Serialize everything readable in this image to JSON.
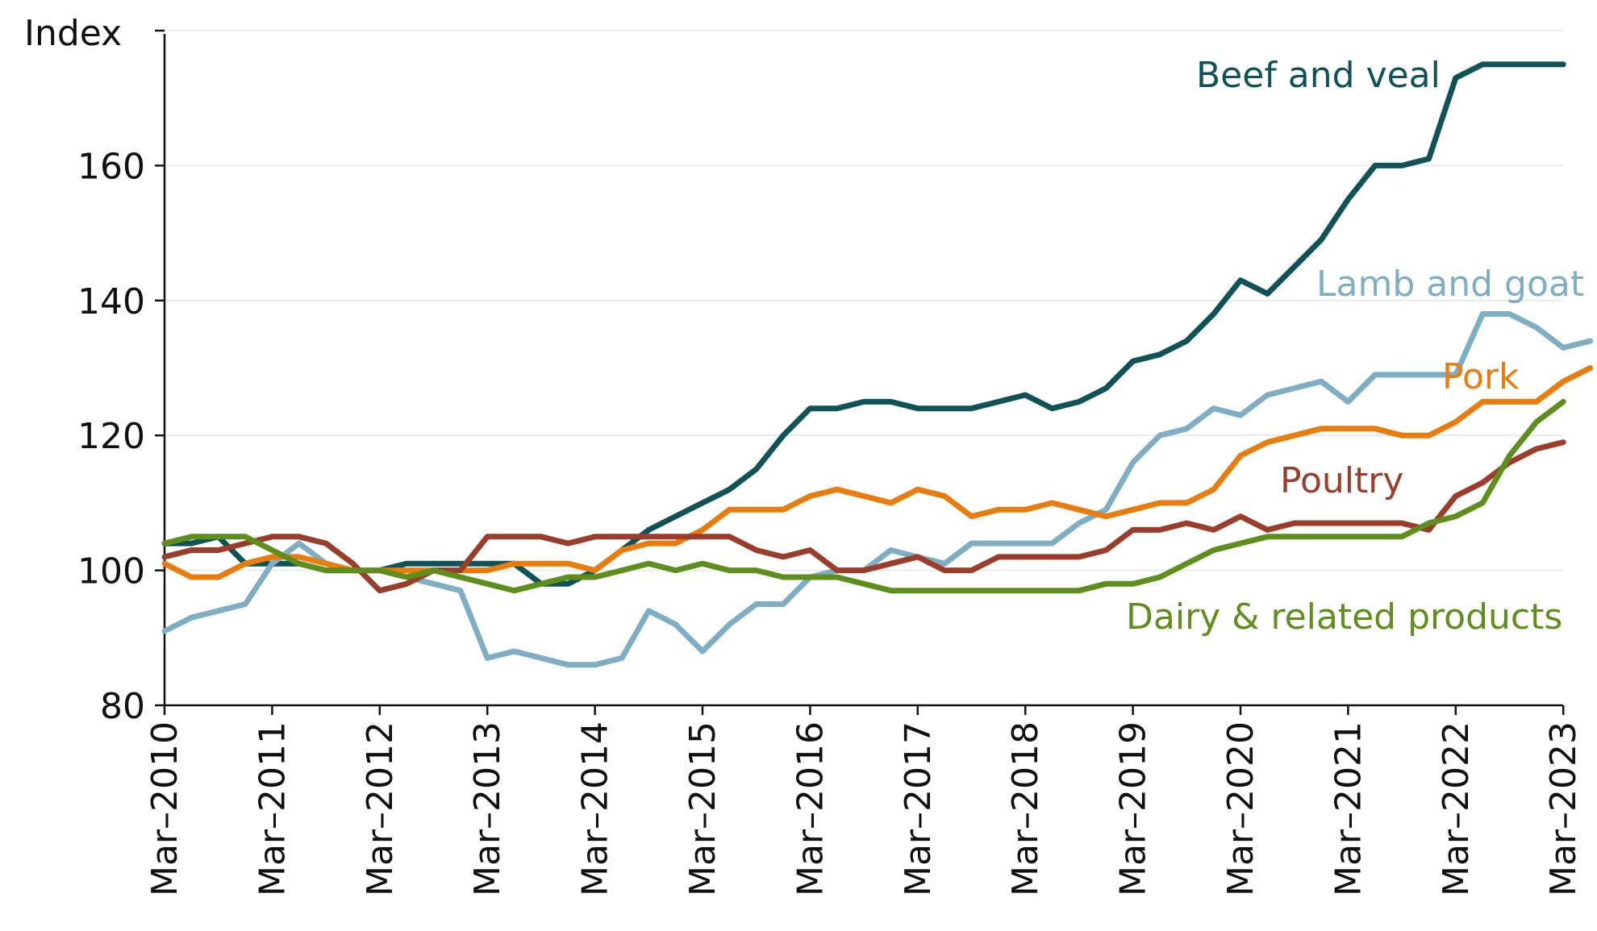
{
  "chart_data": {
    "type": "line",
    "title": "",
    "xlabel": "",
    "ylabel": "Index",
    "ylim": [
      80,
      180
    ],
    "yticks": [
      80,
      100,
      120,
      140,
      160
    ],
    "x_tick_labels": [
      "Mar–2010",
      "Mar–2011",
      "Mar–2012",
      "Mar–2013",
      "Mar–2014",
      "Mar–2015",
      "Mar–2016",
      "Mar–2017",
      "Mar–2018",
      "Mar–2019",
      "Mar–2020",
      "Mar–2021",
      "Mar–2022",
      "Mar–2023"
    ],
    "x_start": "Mar–2010",
    "x_frequency": "quarterly",
    "grid": true,
    "series": [
      {
        "name": "Beef and veal",
        "color": "#0f5257",
        "values": [
          104,
          104,
          105,
          101,
          101,
          101,
          100,
          100,
          100,
          101,
          101,
          101,
          101,
          101,
          98,
          98,
          100,
          103,
          106,
          108,
          110,
          112,
          115,
          120,
          124,
          124,
          125,
          125,
          124,
          124,
          124,
          125,
          126,
          124,
          125,
          127,
          131,
          132,
          134,
          138,
          143,
          141,
          145,
          149,
          155,
          160,
          160,
          161,
          173,
          175,
          175,
          175,
          175
        ]
      },
      {
        "name": "Lamb and goat",
        "color": "#7eaec4",
        "values": [
          91,
          93,
          94,
          95,
          101,
          104,
          101,
          100,
          100,
          99,
          98,
          97,
          87,
          88,
          87,
          86,
          86,
          87,
          94,
          92,
          88,
          92,
          95,
          95,
          99,
          100,
          100,
          103,
          102,
          101,
          104,
          104,
          104,
          104,
          107,
          109,
          116,
          120,
          121,
          124,
          123,
          126,
          127,
          128,
          125,
          129,
          129,
          129,
          129,
          138,
          138,
          136,
          133,
          134
        ]
      },
      {
        "name": "Pork",
        "color": "#e97c0c",
        "values": [
          101,
          99,
          99,
          101,
          102,
          102,
          101,
          100,
          100,
          100,
          100,
          100,
          100,
          101,
          101,
          101,
          100,
          103,
          104,
          104,
          106,
          109,
          109,
          109,
          111,
          112,
          111,
          110,
          112,
          111,
          108,
          109,
          109,
          110,
          109,
          108,
          109,
          110,
          110,
          112,
          117,
          119,
          120,
          121,
          121,
          121,
          120,
          120,
          122,
          125,
          125,
          125,
          128,
          130
        ]
      },
      {
        "name": "Poultry",
        "color": "#9b3d2a",
        "values": [
          102,
          103,
          103,
          104,
          105,
          105,
          104,
          101,
          97,
          98,
          100,
          100,
          105,
          105,
          105,
          104,
          105,
          105,
          105,
          105,
          105,
          105,
          103,
          102,
          103,
          100,
          100,
          101,
          102,
          100,
          100,
          102,
          102,
          102,
          102,
          103,
          106,
          106,
          107,
          106,
          108,
          106,
          107,
          107,
          107,
          107,
          107,
          106,
          111,
          113,
          116,
          118,
          119
        ]
      },
      {
        "name": "Dairy & related products",
        "color": "#5e8f1c",
        "values": [
          104,
          105,
          105,
          105,
          103,
          101,
          100,
          100,
          100,
          99,
          100,
          99,
          98,
          97,
          98,
          99,
          99,
          100,
          101,
          100,
          101,
          100,
          100,
          99,
          99,
          99,
          98,
          97,
          97,
          97,
          97,
          97,
          97,
          97,
          97,
          98,
          98,
          99,
          101,
          103,
          104,
          105,
          105,
          105,
          105,
          105,
          105,
          107,
          108,
          110,
          117,
          122,
          125
        ]
      }
    ]
  }
}
